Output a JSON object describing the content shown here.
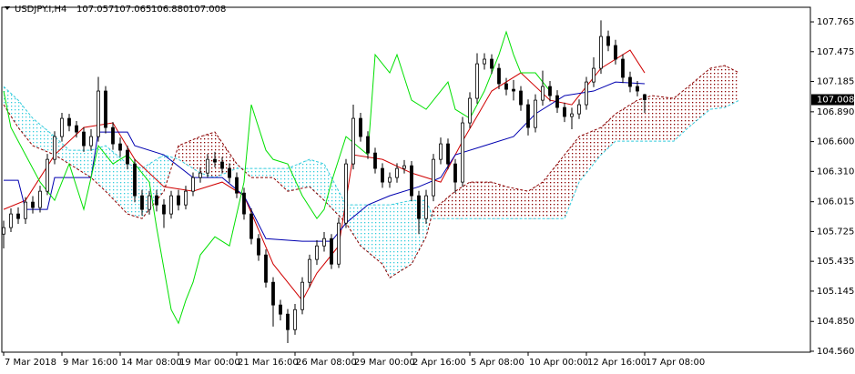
{
  "chart_data": {
    "type": "candlestick",
    "title": "USDJPY.I,H4",
    "ohlc_labels": [
      "107.057",
      "107.065",
      "106.880",
      "107.008"
    ],
    "categories": [
      "7 Mar 2018",
      null,
      null,
      null,
      null,
      null,
      null,
      null,
      "9 Mar 16:00",
      null,
      null,
      null,
      null,
      null,
      null,
      null,
      "14 Mar 08:00",
      null,
      null,
      null,
      null,
      null,
      null,
      null,
      "19 Mar 00:00",
      null,
      null,
      null,
      null,
      null,
      null,
      null,
      "21 Mar 16:00",
      null,
      null,
      null,
      null,
      null,
      null,
      null,
      "26 Mar 08:00",
      null,
      null,
      null,
      null,
      null,
      null,
      null,
      "29 Mar 00:00",
      null,
      null,
      null,
      null,
      null,
      null,
      null,
      "2 Apr 16:00",
      null,
      null,
      null,
      null,
      null,
      null,
      null,
      "5 Apr 08:00",
      null,
      null,
      null,
      null,
      null,
      null,
      null,
      "10 Apr 00:00",
      null,
      null,
      null,
      null,
      null,
      null,
      null,
      "12 Apr 16:00",
      null,
      null,
      null,
      null,
      null,
      null,
      null,
      "17 Apr 08:00"
    ],
    "open": [
      105.7,
      105.763,
      105.896,
      105.851,
      106.011,
      105.958,
      106.117,
      106.427,
      106.649,
      106.826,
      106.755,
      106.693,
      106.56,
      106.649,
      107.092,
      106.737,
      106.578,
      106.516,
      106.383,
      106.073,
      105.94,
      106.073,
      105.984,
      105.896,
      106.073,
      105.984,
      106.117,
      106.25,
      106.294,
      106.427,
      106.401,
      106.339,
      106.25,
      106.099,
      105.896,
      105.656,
      105.497,
      105.231,
      105.01,
      104.921,
      104.77,
      104.965,
      105.231,
      105.453,
      105.585,
      105.656,
      105.408,
      105.807,
      106.383,
      106.826,
      106.649,
      106.489,
      106.339,
      106.206,
      106.25,
      106.339,
      106.365,
      106.073,
      105.851,
      106.073,
      106.427,
      106.578,
      106.383,
      106.206,
      106.782,
      107.021,
      107.357,
      107.402,
      107.313,
      107.163,
      107.109,
      107.092,
      106.959,
      106.737,
      107.003,
      107.136,
      107.047,
      106.932,
      106.844,
      106.87,
      106.959,
      107.18,
      107.313,
      107.623,
      107.535,
      107.402,
      107.225,
      107.136,
      107.057
    ],
    "high": [
      105.83,
      105.95,
      105.96,
      106.06,
      106.07,
      106.17,
      106.48,
      106.7,
      106.88,
      106.87,
      106.8,
      106.74,
      106.72,
      107.23,
      107.14,
      106.79,
      106.64,
      106.56,
      106.43,
      106.13,
      106.12,
      106.13,
      106.04,
      106.12,
      106.13,
      106.17,
      106.3,
      106.35,
      106.48,
      106.5,
      106.45,
      106.39,
      106.3,
      106.15,
      105.95,
      105.7,
      105.55,
      105.28,
      105.06,
      104.97,
      105.02,
      105.28,
      105.5,
      105.64,
      105.72,
      105.7,
      105.86,
      106.43,
      106.96,
      106.88,
      106.7,
      106.54,
      106.39,
      106.3,
      106.39,
      106.42,
      106.41,
      106.12,
      106.13,
      106.48,
      106.64,
      106.63,
      106.43,
      106.84,
      107.08,
      107.46,
      107.46,
      107.45,
      107.36,
      107.22,
      107.2,
      107.14,
      107.01,
      107.06,
      107.29,
      107.19,
      107.1,
      106.98,
      106.93,
      107.01,
      107.23,
      107.42,
      107.78,
      107.68,
      107.59,
      107.45,
      107.28,
      107.19,
      107.065
    ],
    "low": [
      105.56,
      105.72,
      105.8,
      105.8,
      105.9,
      105.91,
      106.08,
      106.38,
      106.6,
      106.7,
      106.64,
      106.5,
      106.51,
      106.6,
      106.68,
      106.52,
      106.45,
      106.33,
      106.01,
      105.88,
      105.89,
      105.92,
      105.76,
      105.85,
      105.93,
      105.94,
      106.07,
      106.2,
      106.25,
      106.35,
      106.29,
      106.2,
      106.05,
      105.84,
      105.6,
      105.44,
      105.18,
      104.8,
      104.86,
      104.64,
      104.72,
      104.92,
      105.18,
      105.4,
      105.53,
      105.36,
      105.37,
      105.76,
      106.33,
      106.6,
      106.43,
      106.29,
      106.15,
      106.15,
      106.2,
      106.29,
      106.02,
      105.7,
      105.8,
      106.02,
      106.38,
      106.33,
      106.1,
      106.16,
      106.73,
      106.97,
      107.3,
      107.26,
      107.11,
      107.05,
      107,
      106.9,
      106.66,
      106.69,
      106.95,
      106.99,
      106.88,
      106.79,
      106.72,
      106.82,
      106.91,
      107.13,
      107.26,
      107.48,
      107.35,
      107.17,
      107.08,
      107.04,
      106.88
    ],
    "close": [
      105.763,
      105.896,
      105.851,
      106.011,
      105.958,
      106.117,
      106.427,
      106.649,
      106.826,
      106.755,
      106.693,
      106.56,
      106.649,
      107.092,
      106.737,
      106.578,
      106.516,
      106.383,
      106.073,
      105.94,
      106.073,
      105.984,
      105.896,
      106.073,
      105.984,
      106.117,
      106.25,
      106.294,
      106.427,
      106.401,
      106.339,
      106.25,
      106.099,
      105.896,
      105.656,
      105.497,
      105.231,
      105.01,
      104.921,
      104.77,
      104.965,
      105.231,
      105.453,
      105.585,
      105.656,
      105.408,
      105.807,
      106.383,
      106.826,
      106.649,
      106.489,
      106.339,
      106.206,
      106.25,
      106.339,
      106.365,
      106.073,
      105.851,
      106.073,
      106.427,
      106.578,
      106.383,
      106.206,
      106.782,
      107.021,
      107.357,
      107.402,
      107.313,
      107.163,
      107.109,
      107.092,
      106.959,
      106.737,
      107.003,
      107.136,
      107.047,
      106.932,
      106.844,
      106.87,
      106.959,
      107.18,
      107.313,
      107.623,
      107.535,
      107.402,
      107.225,
      107.136,
      107.092,
      107.008
    ],
    "up_color": "#ffffff",
    "down_color": "#000000",
    "indicators": [
      {
        "color": "#d00000",
        "x": [
          0,
          3,
          7,
          11,
          15,
          18,
          22,
          26,
          30,
          33,
          37,
          41,
          43,
          46,
          48,
          52,
          56,
          60,
          63,
          67,
          71,
          75,
          78,
          82,
          86,
          88
        ],
        "values": [
          105.94,
          106.028,
          106.471,
          106.737,
          106.782,
          106.427,
          106.161,
          106.117,
          106.206,
          106.073,
          105.408,
          105.054,
          105.32,
          105.585,
          106.471,
          106.427,
          106.294,
          106.206,
          106.604,
          107.092,
          107.269,
          107.003,
          106.959,
          107.313,
          107.49,
          107.269
        ]
      },
      {
        "color": "#0000b0",
        "x": [
          0,
          2,
          3,
          6,
          7,
          12,
          13,
          17,
          18,
          22,
          26,
          30,
          33,
          36,
          41,
          45,
          47,
          50,
          53,
          57,
          60,
          62,
          66,
          70,
          73,
          77,
          81,
          84,
          88
        ],
        "values": [
          106.223,
          106.223,
          105.94,
          105.94,
          106.25,
          106.25,
          106.693,
          106.693,
          106.56,
          106.471,
          106.25,
          106.25,
          106.073,
          105.656,
          105.63,
          105.63,
          105.807,
          105.984,
          106.073,
          106.161,
          106.25,
          106.471,
          106.56,
          106.649,
          106.87,
          107.047,
          107.092,
          107.18,
          107.163
        ]
      },
      {
        "color": "#00e000",
        "x": [
          0,
          1,
          3,
          5,
          7,
          9,
          11,
          13,
          15,
          17,
          20,
          21,
          23,
          24,
          25,
          26,
          27,
          29,
          31,
          33,
          34,
          36,
          37,
          39,
          41,
          43,
          44,
          45,
          47,
          50,
          51,
          53,
          54,
          56,
          58,
          60,
          61,
          62,
          64,
          66,
          68,
          69,
          70,
          71,
          73,
          75
        ],
        "values": [
          107.092,
          106.737,
          106.471,
          106.206,
          106.028,
          106.383,
          105.94,
          106.56,
          106.383,
          106.471,
          106.206,
          105.763,
          104.965,
          104.832,
          105.054,
          105.231,
          105.497,
          105.674,
          105.585,
          106.206,
          106.959,
          106.516,
          106.427,
          106.383,
          106.073,
          105.851,
          105.94,
          106.206,
          106.649,
          106.471,
          107.446,
          107.269,
          107.446,
          107.003,
          106.914,
          107.092,
          107.18,
          106.914,
          106.826,
          107.092,
          107.446,
          107.668,
          107.446,
          107.269,
          107.269,
          107.092
        ]
      }
    ],
    "cloud": {
      "up_color": "#33ccdd",
      "down_color": "#8b0000",
      "x": [
        0,
        2,
        4,
        7,
        9,
        12,
        14,
        17,
        19,
        22,
        24,
        27,
        29,
        32,
        34,
        37,
        39,
        42,
        44,
        47,
        49,
        52,
        53,
        56,
        58,
        59,
        62,
        64,
        67,
        69,
        72,
        74,
        77,
        79,
        82,
        84,
        87,
        89,
        92,
        94,
        97,
        99,
        101
      ],
      "span_a": [
        107.136,
        107.003,
        106.826,
        106.649,
        106.516,
        106.516,
        106.56,
        106.383,
        106.339,
        106.471,
        106.427,
        106.294,
        106.25,
        106.339,
        106.339,
        106.339,
        106.339,
        106.427,
        106.383,
        105.984,
        105.984,
        105.984,
        105.984,
        106.028,
        106.028,
        105.851,
        105.851,
        105.851,
        105.851,
        105.851,
        105.851,
        105.851,
        105.851,
        106.206,
        106.471,
        106.604,
        106.604,
        106.604,
        106.604,
        106.737,
        106.914,
        106.932,
        107.003
      ],
      "span_b": [
        106.959,
        106.737,
        106.56,
        106.471,
        106.383,
        106.25,
        106.117,
        105.896,
        105.851,
        106.117,
        106.56,
        106.649,
        106.693,
        106.383,
        106.25,
        106.25,
        106.117,
        106.161,
        106.028,
        105.807,
        105.585,
        105.408,
        105.275,
        105.408,
        105.674,
        105.94,
        106.117,
        106.206,
        106.206,
        106.161,
        106.117,
        106.206,
        106.471,
        106.649,
        106.737,
        106.87,
        107.003,
        107.047,
        107.021,
        107.136,
        107.313,
        107.34,
        107.269
      ]
    },
    "ylim": [
      104.551,
      107.907
    ],
    "yticks": [
      107.765,
      107.475,
      107.185,
      {
        "value": 106.89,
        "label": "106.890"
      },
      {
        "value": 106.6,
        "label": "106.600"
      },
      {
        "value": 106.31,
        "label": "106.310"
      },
      106.015,
      105.725,
      105.435,
      105.145,
      {
        "value": 104.85,
        "label": "104.850"
      },
      {
        "value": 104.56,
        "label": "104.560"
      }
    ]
  }
}
